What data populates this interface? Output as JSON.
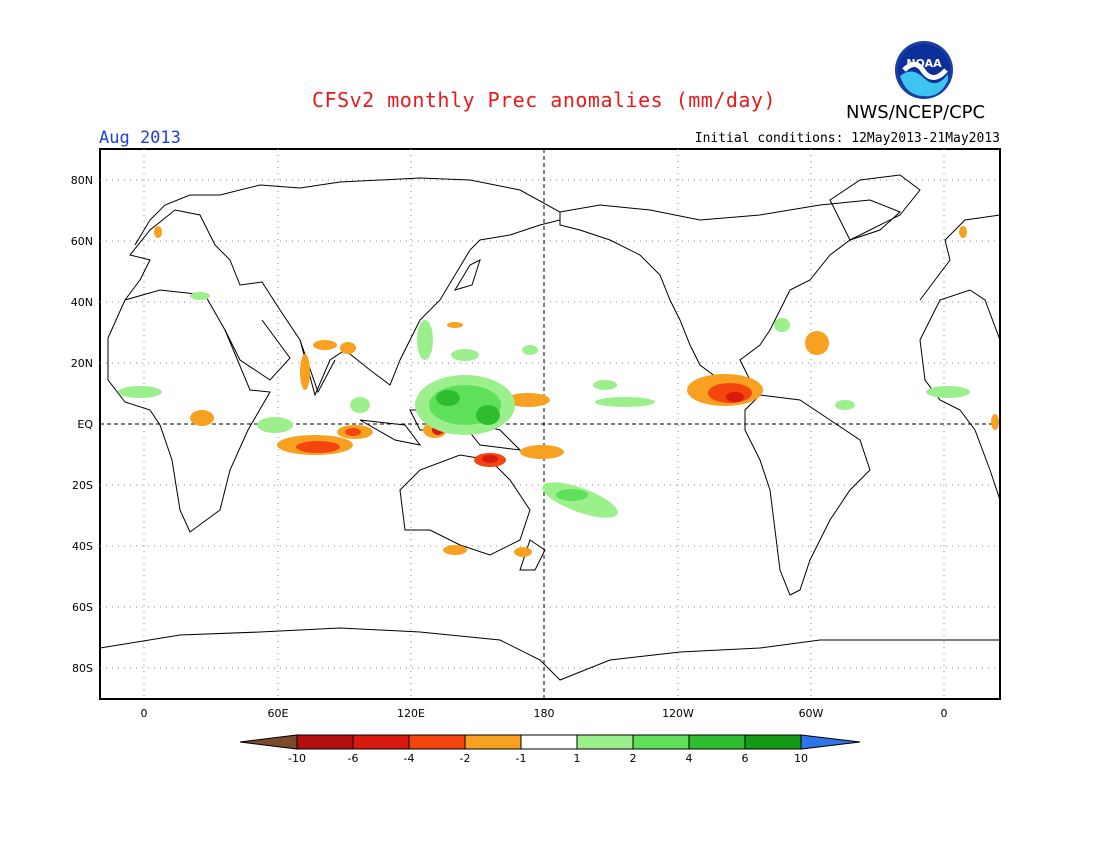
{
  "header": {
    "title": "CFSv2 monthly Prec anomalies (mm/day)",
    "agency": "NWS/NCEP/CPC",
    "month": "Aug 2013",
    "initial_conditions": "Initial conditions: 12May2013-21May2013",
    "logo_text": "NOAA"
  },
  "axes": {
    "lat_labels": [
      "80N",
      "60N",
      "40N",
      "20N",
      "EQ",
      "20S",
      "40S",
      "60S",
      "80S"
    ],
    "lon_labels": [
      "0",
      "60E",
      "120E",
      "180",
      "120W",
      "60W",
      "0"
    ]
  },
  "colorbar": {
    "labels": [
      "-10",
      "-6",
      "-4",
      "-2",
      "-1",
      "1",
      "2",
      "4",
      "6",
      "10"
    ],
    "colors": [
      "#7a4a2e",
      "#b40e0e",
      "#d8190f",
      "#f5450f",
      "#f8a020",
      "#ffffff",
      "#9cf08c",
      "#5ee05a",
      "#2fbe2f",
      "#159a15",
      "#2f74e8"
    ]
  },
  "colors": {
    "dry_strong": "#d8190f",
    "dry": "#f5450f",
    "dry_light": "#f8a020",
    "wet_light": "#9cf08c",
    "wet": "#5ee05a",
    "wet_strong": "#2fbe2f"
  }
}
